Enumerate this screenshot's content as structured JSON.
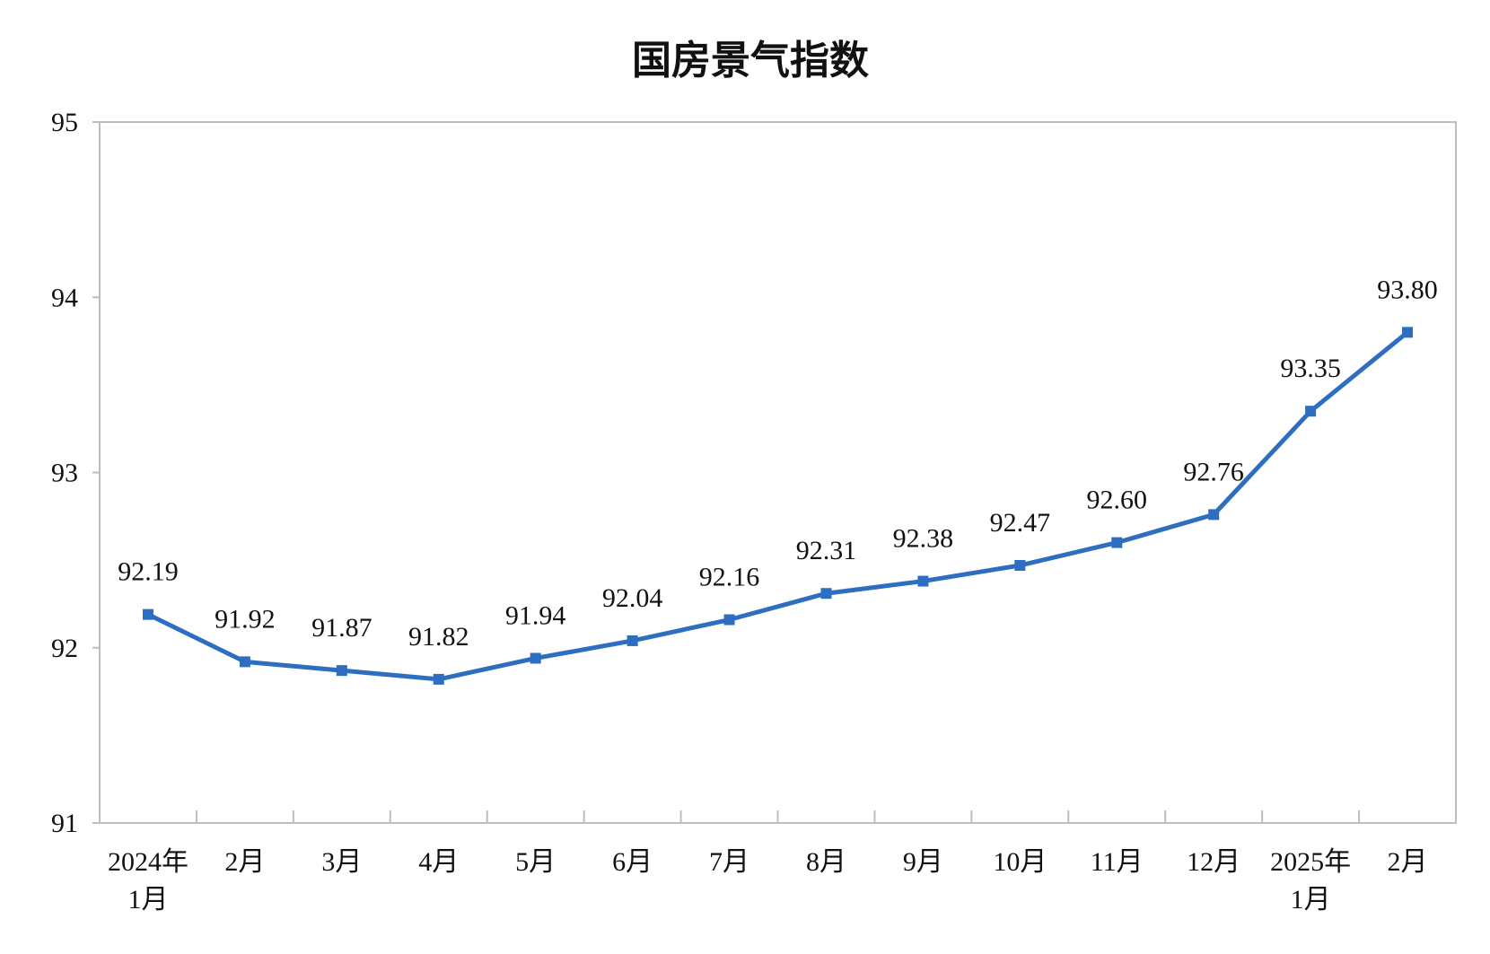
{
  "chart_data": {
    "type": "line",
    "title": "国房景气指数",
    "categories": [
      [
        "2024年",
        "1月"
      ],
      [
        "2月"
      ],
      [
        "3月"
      ],
      [
        "4月"
      ],
      [
        "5月"
      ],
      [
        "6月"
      ],
      [
        "7月"
      ],
      [
        "8月"
      ],
      [
        "9月"
      ],
      [
        "10月"
      ],
      [
        "11月"
      ],
      [
        "12月"
      ],
      [
        "2025年",
        "1月"
      ],
      [
        "2月"
      ]
    ],
    "values": [
      92.19,
      91.92,
      91.87,
      91.82,
      91.94,
      92.04,
      92.16,
      92.31,
      92.38,
      92.47,
      92.6,
      92.76,
      93.35,
      93.8
    ],
    "labels": [
      "92.19",
      "91.92",
      "91.87",
      "91.82",
      "91.94",
      "92.04",
      "92.16",
      "92.31",
      "92.38",
      "92.47",
      "92.60",
      "92.76",
      "93.35",
      "93.80"
    ],
    "ylim": [
      91,
      95
    ],
    "yticks": [
      "91",
      "92",
      "93",
      "94",
      "95"
    ],
    "xlabel": "",
    "ylabel": "",
    "grid": false,
    "legend": "none",
    "line_color": "#2E6EC1",
    "marker": "square"
  }
}
